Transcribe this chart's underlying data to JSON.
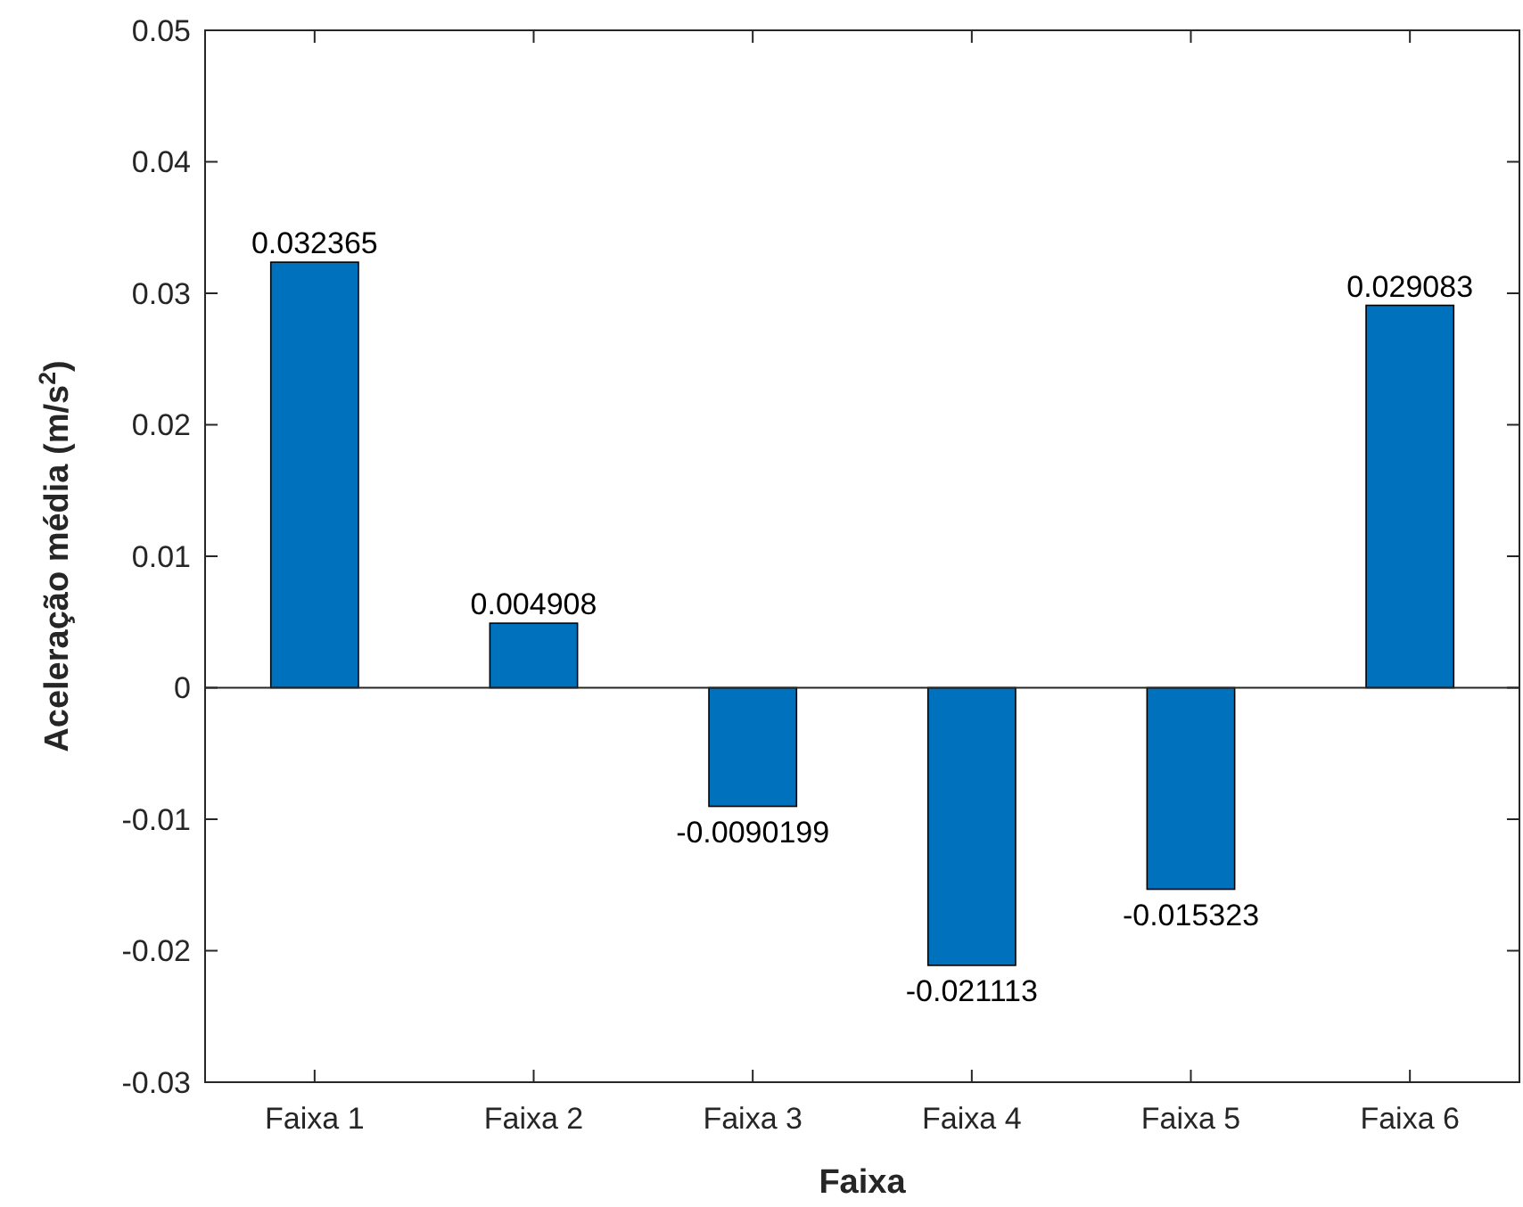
{
  "chart_data": {
    "type": "bar",
    "xlabel": "Faixa",
    "ylabel": "Aceleração média (m/s$^{2}$)",
    "categories": [
      "Faixa 1",
      "Faixa 2",
      "Faixa 3",
      "Faixa 4",
      "Faixa 5",
      "Faixa 6"
    ],
    "values": [
      0.032365,
      0.004908,
      -0.0090199,
      -0.021113,
      -0.015323,
      0.029083
    ],
    "color": "#0072bd",
    "ylim": [
      -0.03,
      0.05
    ],
    "yticks": [
      -0.03,
      -0.02,
      -0.01,
      0,
      0.01,
      0.02,
      0.03,
      0.04,
      0.05
    ],
    "data_labels": true
  }
}
